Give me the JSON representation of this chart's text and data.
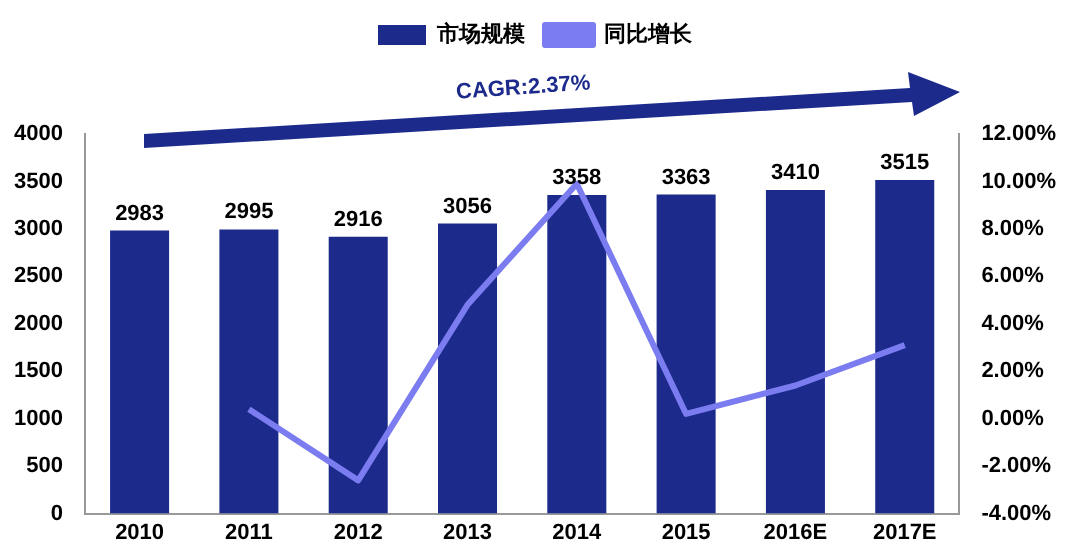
{
  "chart_data": {
    "type": "bar",
    "categories": [
      "2010",
      "2011",
      "2012",
      "2013",
      "2014",
      "2015",
      "2016E",
      "2017E"
    ],
    "series": [
      {
        "name": "市场规模",
        "color": "#1c2a8c",
        "values": [
          2983,
          2995,
          2916,
          3056,
          3358,
          3363,
          3410,
          3515
        ],
        "value_labels": [
          "2983",
          "2995",
          "2916",
          "3056",
          "3358",
          "3363",
          "3410",
          "3515"
        ]
      },
      {
        "name": "同比增长",
        "type": "line",
        "axis": "y2",
        "color": "#7b7cf0",
        "values": [
          null,
          0.4,
          -2.6,
          4.8,
          9.9,
          0.2,
          1.4,
          3.1
        ]
      }
    ],
    "ylim": [
      0,
      4000
    ],
    "yticks": [
      0,
      500,
      1000,
      1500,
      2000,
      2500,
      3000,
      3500,
      4000
    ],
    "y2lim": [
      -4,
      12
    ],
    "y2ticks": [
      {
        "value": -4,
        "label": "-4.00%"
      },
      {
        "value": -2,
        "label": "-2.00%"
      },
      {
        "value": 0,
        "label": "0.00%"
      },
      {
        "value": 2,
        "label": "2.00%"
      },
      {
        "value": 4,
        "label": "4.00%"
      },
      {
        "value": 6,
        "label": "6.00%"
      },
      {
        "value": 8,
        "label": "8.00%"
      },
      {
        "value": 10,
        "label": "10.00%"
      },
      {
        "value": 12,
        "label": "12.00%"
      }
    ],
    "annotations": [
      "CAGR:2.37%"
    ],
    "legend": "top",
    "grid": false,
    "marker": "none"
  }
}
